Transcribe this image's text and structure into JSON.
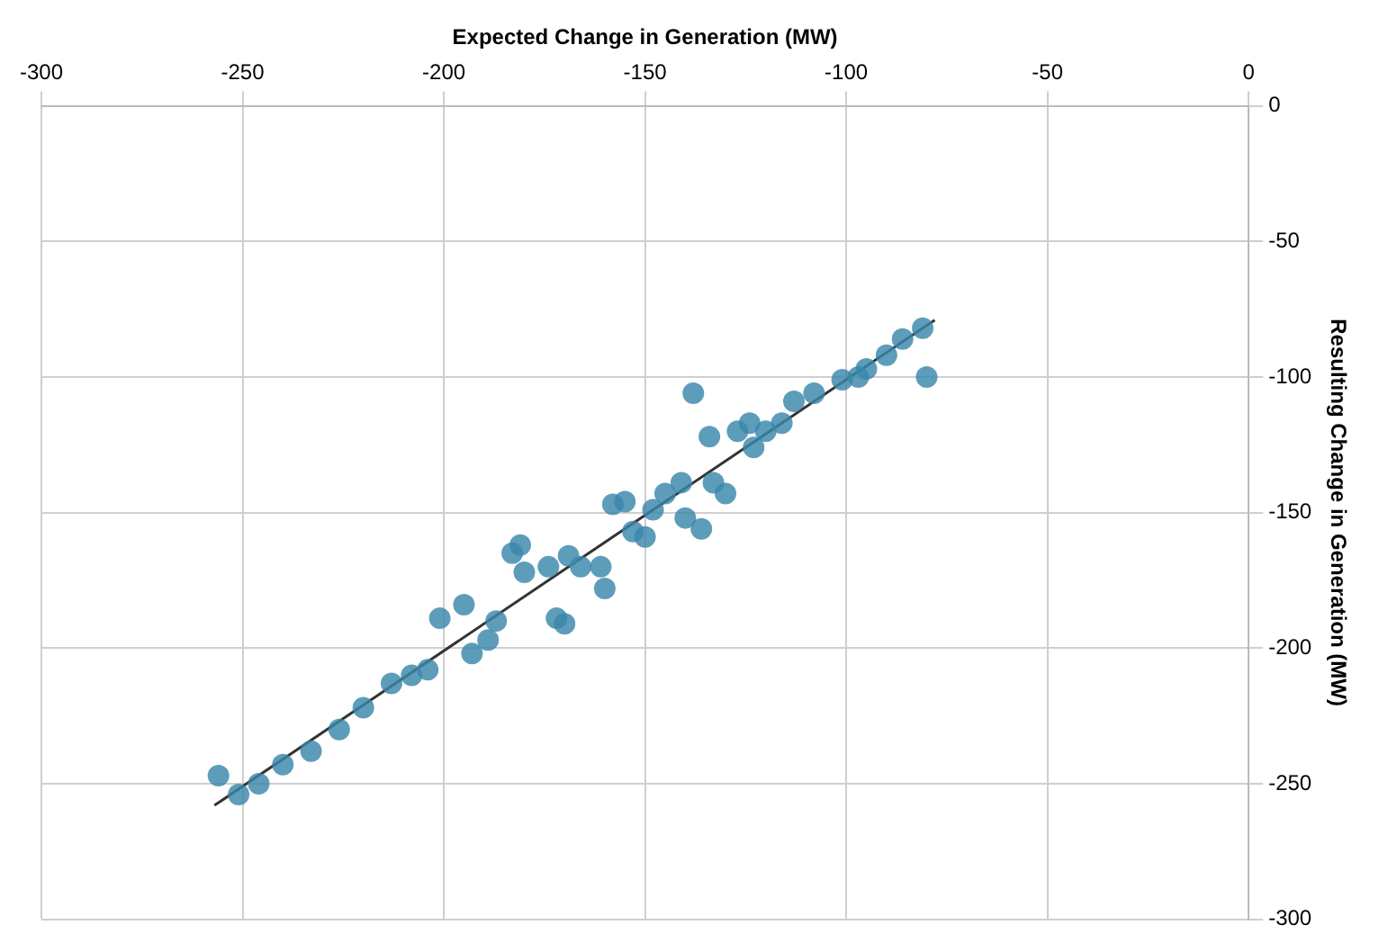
{
  "chart_data": {
    "type": "scatter",
    "xlabel": "Expected Change in Generation (MW)",
    "ylabel": "Resulting Change in Generation (MW)",
    "xlim": [
      -300,
      0
    ],
    "xticks": [
      -300,
      -250,
      -200,
      -150,
      -100,
      -50,
      0
    ],
    "ylim": [
      -300,
      0
    ],
    "yticks": [
      -300,
      -250,
      -200,
      -150,
      -100,
      -50,
      0
    ],
    "grid": true,
    "legend": false,
    "marker": "circle",
    "series": [
      {
        "color": "#3a87ab",
        "x": [
          -256,
          -251,
          -246,
          -240,
          -233,
          -226,
          -220,
          -213,
          -208,
          -204,
          -201,
          -195,
          -193,
          -189,
          -187,
          -183,
          -181,
          -180,
          -174,
          -172,
          -170,
          -169,
          -166,
          -161,
          -160,
          -158,
          -155,
          -153,
          -150,
          -148,
          -145,
          -141,
          -140,
          -138,
          -136,
          -134,
          -133,
          -130,
          -127,
          -124,
          -123,
          -120,
          -116,
          -113,
          -108,
          -101,
          -97,
          -95,
          -90,
          -86,
          -81,
          -80
        ],
        "values": [
          -247,
          -254,
          -250,
          -243,
          -238,
          -230,
          -222,
          -213,
          -210,
          -208,
          -189,
          -184,
          -202,
          -197,
          -190,
          -165,
          -162,
          -172,
          -170,
          -189,
          -191,
          -166,
          -170,
          -170,
          -178,
          -147,
          -146,
          -157,
          -159,
          -149,
          -143,
          -139,
          -152,
          -106,
          -156,
          -122,
          -139,
          -143,
          -120,
          -117,
          -126,
          -120,
          -117,
          -109,
          -106,
          -101,
          -100,
          -97,
          -92,
          -86,
          -82,
          -100
        ]
      },
      {
        "type": "line",
        "color": "#333333",
        "marker": "none",
        "x": [
          -257,
          -78
        ],
        "values": [
          -258,
          -79
        ]
      }
    ]
  }
}
